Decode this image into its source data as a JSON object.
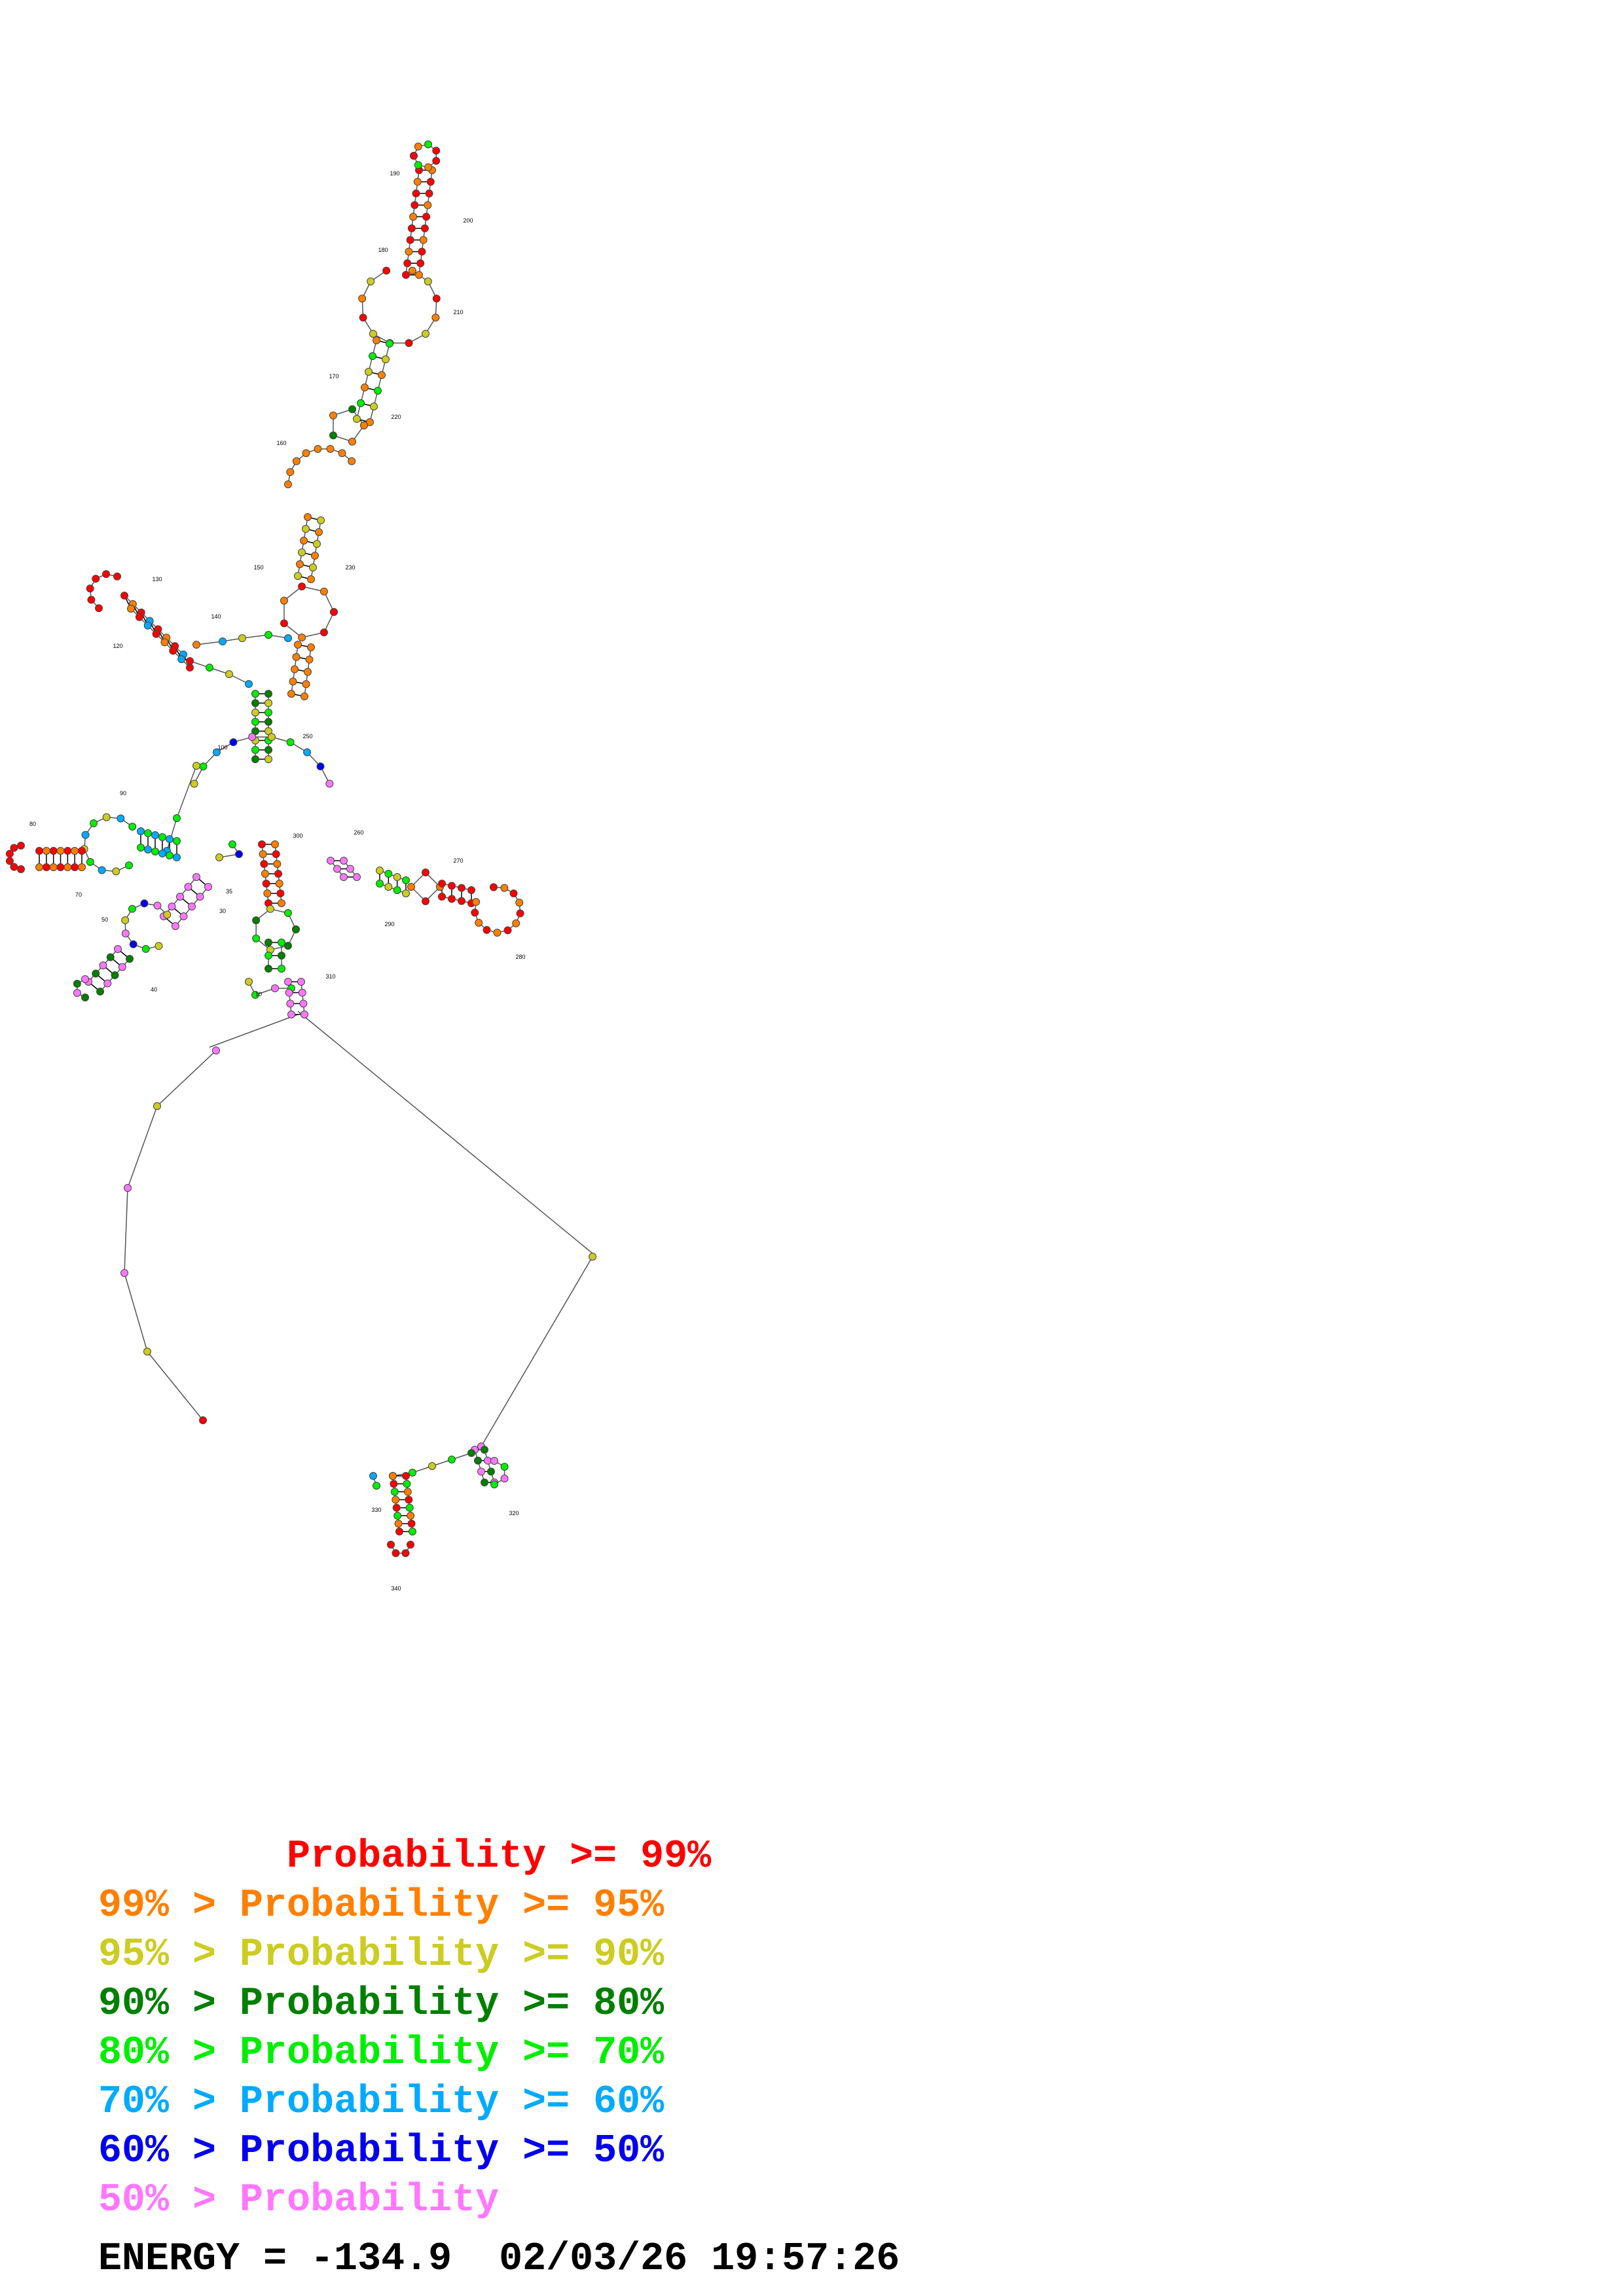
{
  "colors": {
    "p99": "#ff0000",
    "p95": "#ff7f00",
    "p90": "#cccc22",
    "p80": "#007f00",
    "p70": "#00ee00",
    "p60": "#00aaff",
    "p50": "#0000ee",
    "plow": "#ff77ff"
  },
  "legend": [
    {
      "prefix": "        ",
      "text": "Probability >= 99%",
      "color_key": "p99"
    },
    {
      "prefix": "99% > ",
      "text": "Probability >= 95%",
      "color_key": "p95"
    },
    {
      "prefix": "95% > ",
      "text": "Probability >= 90%",
      "color_key": "p90"
    },
    {
      "prefix": "90% > ",
      "text": "Probability >= 80%",
      "color_key": "p80"
    },
    {
      "prefix": "80% > ",
      "text": "Probability >= 70%",
      "color_key": "p70"
    },
    {
      "prefix": "70% > ",
      "text": "Probability >= 60%",
      "color_key": "p60"
    },
    {
      "prefix": "60% > ",
      "text": "Probability >= 50%",
      "color_key": "p50"
    },
    {
      "prefix": "50% > ",
      "text": "Probability",
      "color_key": "plow"
    }
  ],
  "energy_line": "ENERGY = -134.9  02/03/26 19:57:26",
  "position_labels": [
    "10",
    "30",
    "35",
    "40",
    "50",
    "70",
    "80",
    "90",
    "100",
    "120",
    "130",
    "140",
    "150",
    "160",
    "170",
    "180",
    "190",
    "200",
    "210",
    "220",
    "230",
    "250",
    "260",
    "270",
    "280",
    "290",
    "300",
    "310",
    "320",
    "330",
    "340"
  ]
}
